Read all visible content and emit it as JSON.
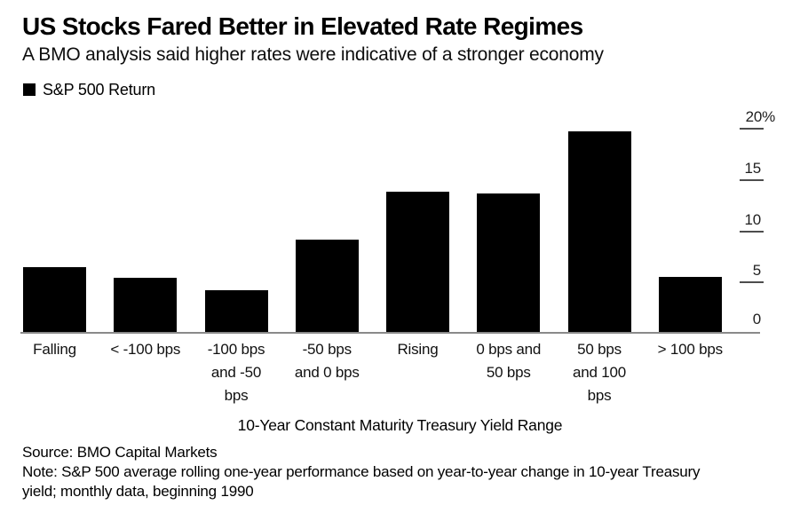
{
  "header": {
    "title": "US Stocks Fared Better in Elevated Rate Regimes",
    "subtitle": "A BMO analysis said higher rates were indicative of a stronger economy"
  },
  "legend": {
    "label": "S&P 500 Return",
    "swatch_color": "#000000"
  },
  "chart_data": {
    "type": "bar",
    "title": "US Stocks Fared Better in Elevated Rate Regimes",
    "subtitle": "A BMO analysis said higher rates were indicative of a stronger economy",
    "series_name": "S&P 500 Return",
    "categories": [
      "Falling",
      "< -100 bps",
      "-100 bps and -50 bps",
      "-50 bps and 0 bps",
      "Rising",
      "0 bps and 50 bps",
      "50 bps and 100 bps",
      "> 100 bps"
    ],
    "categories_display": [
      "Falling",
      "< -100 bps",
      "-100 bps\nand -50\nbps",
      "-50 bps\nand 0 bps",
      "Rising",
      "0 bps and\n50 bps",
      "50 bps\nand 100\nbps",
      "> 100 bps"
    ],
    "values": [
      6.4,
      5.4,
      4.2,
      9.1,
      13.8,
      13.6,
      19.7,
      5.5
    ],
    "unit": "percent",
    "xlabel": "10-Year Constant Maturity Treasury Yield Range",
    "ylabel": "",
    "ylim": [
      0,
      20
    ],
    "yticks": [
      {
        "label": "20%",
        "value": 20
      },
      {
        "label": "15",
        "value": 15
      },
      {
        "label": "10",
        "value": 10
      },
      {
        "label": "5",
        "value": 5
      },
      {
        "label": "0",
        "value": 0
      }
    ],
    "grid": false,
    "bar_color": "#000000",
    "background_color": "#ffffff",
    "legend_position": "top-left",
    "y_axis_side": "right"
  },
  "footer": {
    "source": "Source: BMO Capital Markets",
    "note": "Note: S&P 500 average rolling one-year performance based on year-to-year change in 10-year Treasury\nyield; monthly data, beginning 1990"
  }
}
